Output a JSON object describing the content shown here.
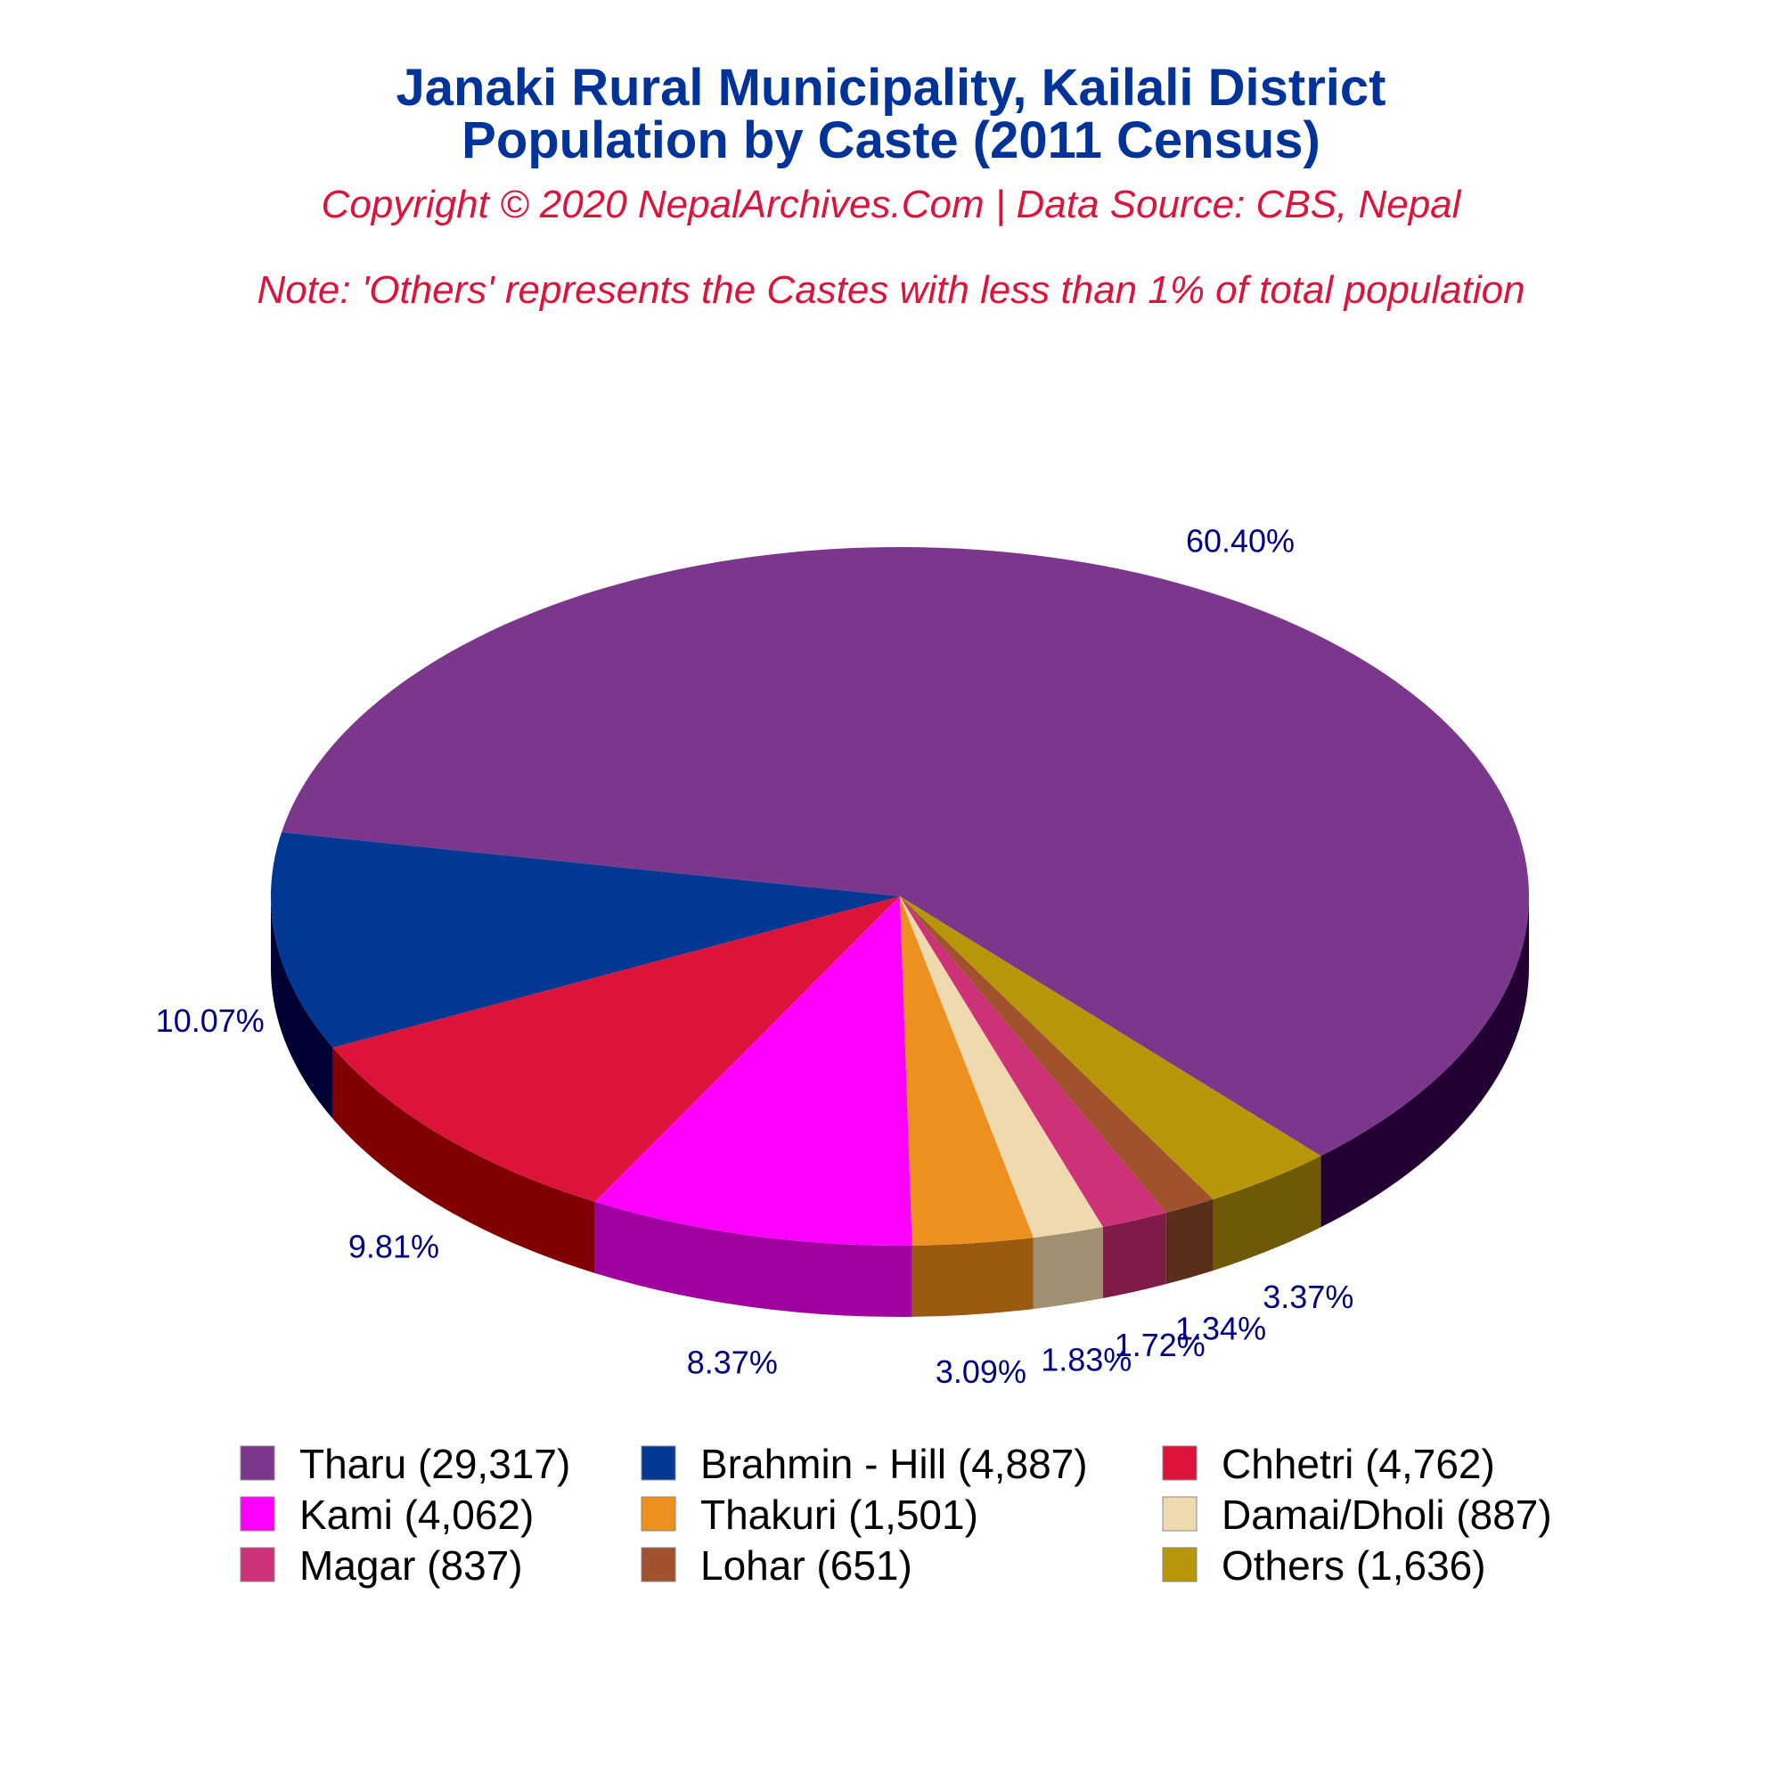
{
  "chart_data": {
    "type": "pie",
    "title_line1": "Janaki Rural Municipality, Kailali District",
    "title_line2": "Population by Caste (2011 Census)",
    "subtitle": "Copyright © 2020 NepalArchives.Com | Data Source: CBS, Nepal",
    "note": "Note: 'Others' represents the Castes with less than 1% of total population",
    "slices": [
      {
        "name": "Tharu",
        "value": 29317,
        "percent_label": "60.40%",
        "legend_label": "Tharu (29,317)",
        "color": "#7a378b",
        "side_color": "#220033"
      },
      {
        "name": "Brahmin - Hill",
        "value": 4887,
        "percent_label": "10.07%",
        "legend_label": "Brahmin - Hill (4,887)",
        "color": "#003893",
        "side_color": "#000033"
      },
      {
        "name": "Chhetri",
        "value": 4762,
        "percent_label": "9.81%",
        "legend_label": "Chhetri (4,762)",
        "color": "#dc143c",
        "side_color": "#800000"
      },
      {
        "name": "Kami",
        "value": 4062,
        "percent_label": "8.37%",
        "legend_label": "Kami (4,062)",
        "color": "#ff00ff",
        "side_color": "#a000a0"
      },
      {
        "name": "Thakuri",
        "value": 1501,
        "percent_label": "3.09%",
        "legend_label": "Thakuri (1,501)",
        "color": "#ee9020",
        "side_color": "#9a5a10"
      },
      {
        "name": "Damai/Dholi",
        "value": 887,
        "percent_label": "1.83%",
        "legend_label": "Damai/Dholi (887)",
        "color": "#efdab0",
        "side_color": "#a08f70"
      },
      {
        "name": "Magar",
        "value": 837,
        "percent_label": "1.72%",
        "legend_label": "Magar (837)",
        "color": "#cd3278",
        "side_color": "#801a48"
      },
      {
        "name": "Lohar",
        "value": 651,
        "percent_label": "1.34%",
        "legend_label": "Lohar (651)",
        "color": "#a0522d",
        "side_color": "#5a2e18"
      },
      {
        "name": "Others",
        "value": 1636,
        "percent_label": "3.37%",
        "legend_label": "Others (1,636)",
        "color": "#b8960a",
        "side_color": "#6e5a06"
      }
    ],
    "legend_placement": "bottom",
    "legend_columns": 3
  }
}
